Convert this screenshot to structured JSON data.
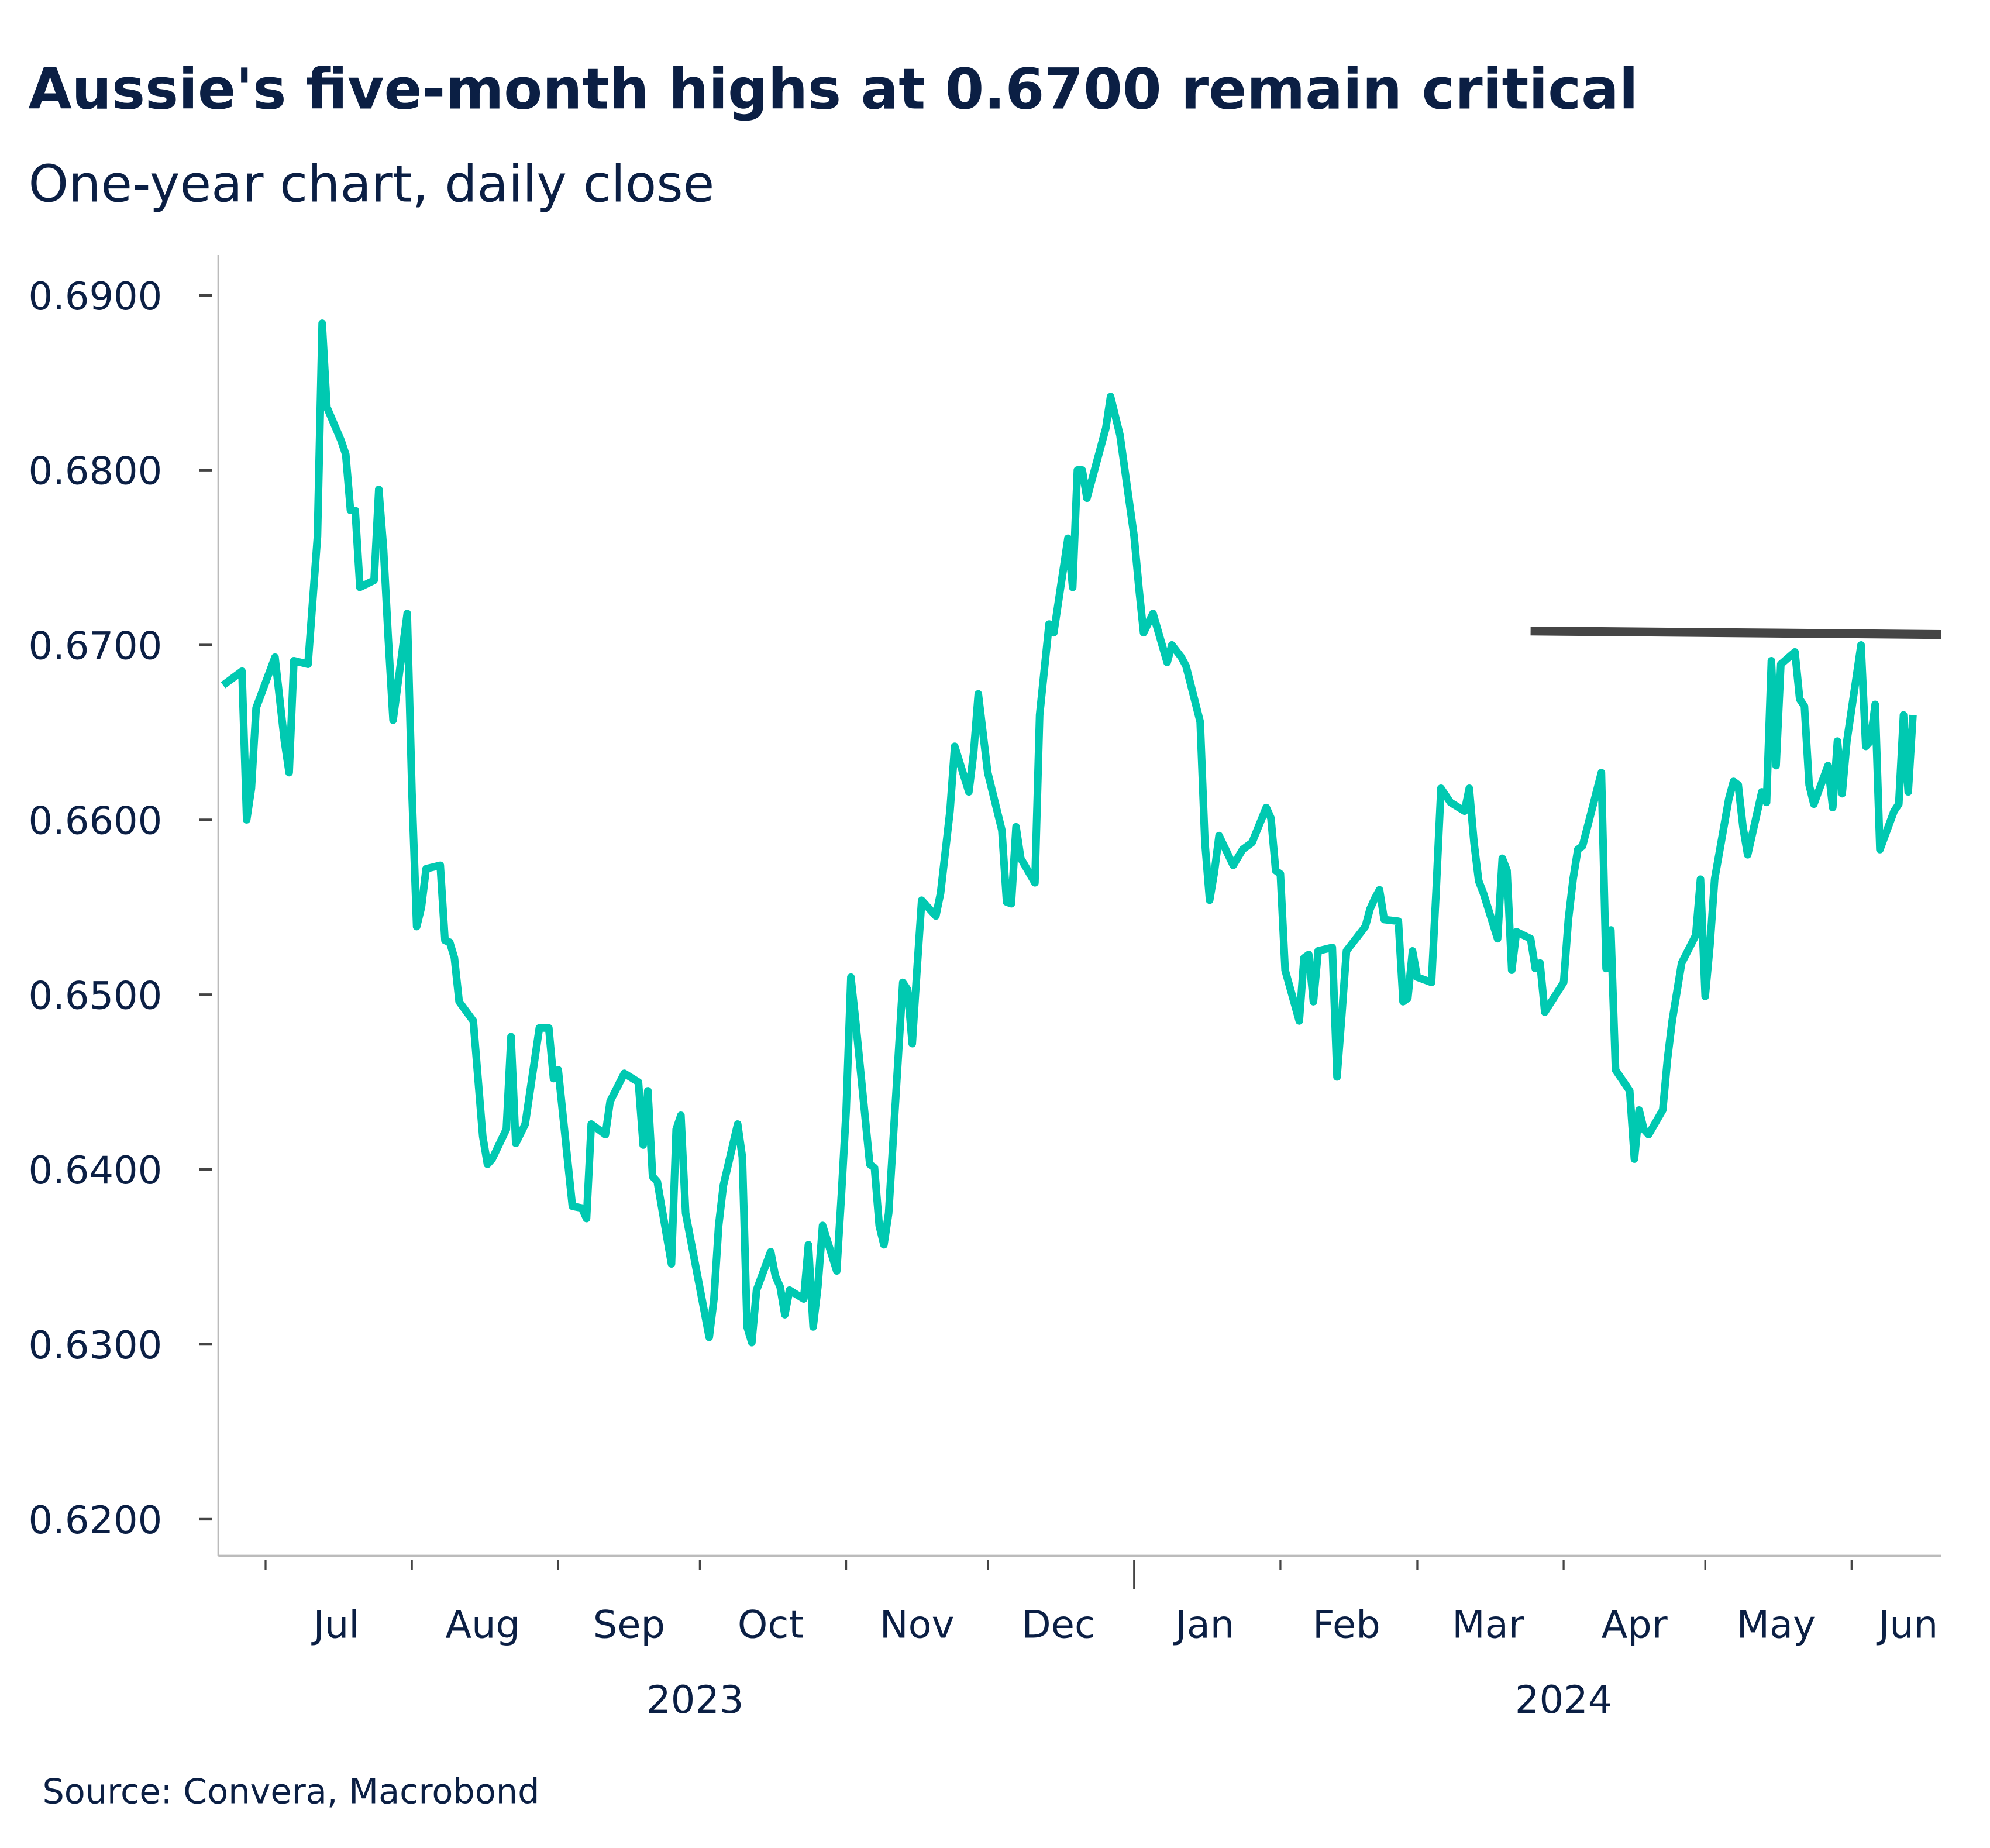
{
  "chart_data": {
    "type": "line",
    "title": "Aussie's five-month highs at 0.6700 remain critical",
    "subtitle": "One-year chart, daily close",
    "source": "Source: Convera, Macrobond",
    "xlabel": "",
    "ylabel": "",
    "xlim": [
      "2023-06-21",
      "2024-06-20"
    ],
    "ylim": [
      0.6179,
      0.6923
    ],
    "y_ticks": [
      "0.6200",
      "0.6300",
      "0.6400",
      "0.6500",
      "0.6600",
      "0.6700",
      "0.6800",
      "0.6900"
    ],
    "x_month_ticks": [
      "2023-07-01",
      "2023-08-01",
      "2023-09-01",
      "2023-10-01",
      "2023-11-01",
      "2023-12-01",
      "2024-01-01",
      "2024-02-01",
      "2024-03-01",
      "2024-04-01",
      "2024-05-01",
      "2024-06-01"
    ],
    "x_month_labels": [
      {
        "label": "Jul",
        "date": "2023-07-16"
      },
      {
        "label": "Aug",
        "date": "2023-08-16"
      },
      {
        "label": "Sep",
        "date": "2023-09-16"
      },
      {
        "label": "Oct",
        "date": "2023-10-16"
      },
      {
        "label": "Nov",
        "date": "2023-11-16"
      },
      {
        "label": "Dec",
        "date": "2023-12-16"
      },
      {
        "label": "Jan",
        "date": "2024-01-16"
      },
      {
        "label": "Feb",
        "date": "2024-02-15"
      },
      {
        "label": "Mar",
        "date": "2024-03-16"
      },
      {
        "label": "Apr",
        "date": "2024-04-16"
      },
      {
        "label": "May",
        "date": "2024-05-16"
      },
      {
        "label": "Jun",
        "date": "2024-06-13"
      }
    ],
    "year_boundary": "2024-01-01",
    "x_year_labels": [
      {
        "label": "2023",
        "date": "2023-09-30"
      },
      {
        "label": "2024",
        "date": "2024-04-01"
      }
    ],
    "grid": false,
    "series": [
      {
        "color": "#00c9b1",
        "points": [
          [
            "2023-06-22",
            0.6677
          ],
          [
            "2023-06-26",
            0.6685
          ],
          [
            "2023-06-27",
            0.66
          ],
          [
            "2023-06-28",
            0.6618
          ],
          [
            "2023-06-29",
            0.6664
          ],
          [
            "2023-07-03",
            0.6693
          ],
          [
            "2023-07-05",
            0.6645
          ],
          [
            "2023-07-06",
            0.6627
          ],
          [
            "2023-07-07",
            0.6691
          ],
          [
            "2023-07-10",
            0.6689
          ],
          [
            "2023-07-12",
            0.6762
          ],
          [
            "2023-07-13",
            0.6884
          ],
          [
            "2023-07-14",
            0.6836
          ],
          [
            "2023-07-17",
            0.6817
          ],
          [
            "2023-07-18",
            0.6809
          ],
          [
            "2023-07-19",
            0.6777
          ],
          [
            "2023-07-20",
            0.6777
          ],
          [
            "2023-07-21",
            0.6733
          ],
          [
            "2023-07-24",
            0.6737
          ],
          [
            "2023-07-25",
            0.6789
          ],
          [
            "2023-07-26",
            0.6755
          ],
          [
            "2023-07-27",
            0.6704
          ],
          [
            "2023-07-28",
            0.6657
          ],
          [
            "2023-07-31",
            0.6718
          ],
          [
            "2023-08-01",
            0.6616
          ],
          [
            "2023-08-02",
            0.6539
          ],
          [
            "2023-08-03",
            0.655
          ],
          [
            "2023-08-04",
            0.6572
          ],
          [
            "2023-08-07",
            0.6574
          ],
          [
            "2023-08-08",
            0.6531
          ],
          [
            "2023-08-09",
            0.653
          ],
          [
            "2023-08-10",
            0.6521
          ],
          [
            "2023-08-11",
            0.6496
          ],
          [
            "2023-08-14",
            0.6485
          ],
          [
            "2023-08-15",
            0.6452
          ],
          [
            "2023-08-16",
            0.6419
          ],
          [
            "2023-08-17",
            0.6403
          ],
          [
            "2023-08-18",
            0.6406
          ],
          [
            "2023-08-21",
            0.6423
          ],
          [
            "2023-08-22",
            0.6476
          ],
          [
            "2023-08-23",
            0.6415
          ],
          [
            "2023-08-25",
            0.6426
          ],
          [
            "2023-08-28",
            0.6481
          ],
          [
            "2023-08-30",
            0.6481
          ],
          [
            "2023-08-31",
            0.6452
          ],
          [
            "2023-09-01",
            0.6457
          ],
          [
            "2023-09-04",
            0.6379
          ],
          [
            "2023-09-06",
            0.6378
          ],
          [
            "2023-09-07",
            0.6372
          ],
          [
            "2023-09-08",
            0.6426
          ],
          [
            "2023-09-11",
            0.642
          ],
          [
            "2023-09-12",
            0.6439
          ],
          [
            "2023-09-15",
            0.6455
          ],
          [
            "2023-09-18",
            0.645
          ],
          [
            "2023-09-19",
            0.6414
          ],
          [
            "2023-09-20",
            0.6445
          ],
          [
            "2023-09-21",
            0.6396
          ],
          [
            "2023-09-22",
            0.6393
          ],
          [
            "2023-09-25",
            0.6346
          ],
          [
            "2023-09-26",
            0.6423
          ],
          [
            "2023-09-27",
            0.6431
          ],
          [
            "2023-09-28",
            0.6375
          ],
          [
            "2023-10-03",
            0.6304
          ],
          [
            "2023-10-04",
            0.6326
          ],
          [
            "2023-10-05",
            0.6368
          ],
          [
            "2023-10-06",
            0.6391
          ],
          [
            "2023-10-09",
            0.6426
          ],
          [
            "2023-10-10",
            0.6407
          ],
          [
            "2023-10-11",
            0.631
          ],
          [
            "2023-10-12",
            0.6301
          ],
          [
            "2023-10-13",
            0.6331
          ],
          [
            "2023-10-16",
            0.6353
          ],
          [
            "2023-10-17",
            0.6339
          ],
          [
            "2023-10-18",
            0.6333
          ],
          [
            "2023-10-19",
            0.6317
          ],
          [
            "2023-10-20",
            0.6331
          ],
          [
            "2023-10-23",
            0.6326
          ],
          [
            "2023-10-24",
            0.6357
          ],
          [
            "2023-10-25",
            0.631
          ],
          [
            "2023-10-26",
            0.6333
          ],
          [
            "2023-10-27",
            0.6368
          ],
          [
            "2023-10-30",
            0.6342
          ],
          [
            "2023-10-31",
            0.6386
          ],
          [
            "2023-11-01",
            0.6434
          ],
          [
            "2023-11-02",
            0.651
          ],
          [
            "2023-11-03",
            0.6485
          ],
          [
            "2023-11-06",
            0.6403
          ],
          [
            "2023-11-07",
            0.6401
          ],
          [
            "2023-11-08",
            0.6368
          ],
          [
            "2023-11-09",
            0.6357
          ],
          [
            "2023-11-10",
            0.6375
          ],
          [
            "2023-11-13",
            0.6507
          ],
          [
            "2023-11-14",
            0.6503
          ],
          [
            "2023-11-15",
            0.6472
          ],
          [
            "2023-11-16",
            0.6514
          ],
          [
            "2023-11-17",
            0.6554
          ],
          [
            "2023-11-20",
            0.6545
          ],
          [
            "2023-11-21",
            0.6558
          ],
          [
            "2023-11-23",
            0.6605
          ],
          [
            "2023-11-24",
            0.6642
          ],
          [
            "2023-11-27",
            0.6616
          ],
          [
            "2023-11-28",
            0.6638
          ],
          [
            "2023-11-29",
            0.6672
          ],
          [
            "2023-12-01",
            0.6627
          ],
          [
            "2023-12-04",
            0.6594
          ],
          [
            "2023-12-05",
            0.6553
          ],
          [
            "2023-12-06",
            0.6552
          ],
          [
            "2023-12-07",
            0.6596
          ],
          [
            "2023-12-08",
            0.6578
          ],
          [
            "2023-12-11",
            0.6564
          ],
          [
            "2023-12-12",
            0.666
          ],
          [
            "2023-12-14",
            0.6712
          ],
          [
            "2023-12-15",
            0.6707
          ],
          [
            "2023-12-18",
            0.6761
          ],
          [
            "2023-12-19",
            0.6733
          ],
          [
            "2023-12-20",
            0.68
          ],
          [
            "2023-12-21",
            0.68
          ],
          [
            "2023-12-22",
            0.6784
          ],
          [
            "2023-12-26",
            0.6824
          ],
          [
            "2023-12-27",
            0.6842
          ],
          [
            "2023-12-28",
            0.6831
          ],
          [
            "2023-12-29",
            0.682
          ],
          [
            "2024-01-01",
            0.6762
          ],
          [
            "2024-01-02",
            0.6733
          ],
          [
            "2024-01-03",
            0.6707
          ],
          [
            "2024-01-05",
            0.6718
          ],
          [
            "2024-01-08",
            0.669
          ],
          [
            "2024-01-09",
            0.67
          ],
          [
            "2024-01-11",
            0.6693
          ],
          [
            "2024-01-12",
            0.6688
          ],
          [
            "2024-01-15",
            0.6656
          ],
          [
            "2024-01-16",
            0.6587
          ],
          [
            "2024-01-17",
            0.6554
          ],
          [
            "2024-01-18",
            0.657
          ],
          [
            "2024-01-19",
            0.6591
          ],
          [
            "2024-01-22",
            0.6574
          ],
          [
            "2024-01-24",
            0.6583
          ],
          [
            "2024-01-26",
            0.6587
          ],
          [
            "2024-01-29",
            0.6607
          ],
          [
            "2024-01-30",
            0.6601
          ],
          [
            "2024-01-31",
            0.6571
          ],
          [
            "2024-02-01",
            0.6569
          ],
          [
            "2024-02-02",
            0.6514
          ],
          [
            "2024-02-05",
            0.6485
          ],
          [
            "2024-02-06",
            0.6521
          ],
          [
            "2024-02-07",
            0.6523
          ],
          [
            "2024-02-08",
            0.6496
          ],
          [
            "2024-02-09",
            0.6525
          ],
          [
            "2024-02-12",
            0.6527
          ],
          [
            "2024-02-13",
            0.6453
          ],
          [
            "2024-02-14",
            0.6488
          ],
          [
            "2024-02-15",
            0.6525
          ],
          [
            "2024-02-19",
            0.6539
          ],
          [
            "2024-02-20",
            0.6549
          ],
          [
            "2024-02-21",
            0.6555
          ],
          [
            "2024-02-22",
            0.656
          ],
          [
            "2024-02-23",
            0.6543
          ],
          [
            "2024-02-26",
            0.6542
          ],
          [
            "2024-02-27",
            0.6496
          ],
          [
            "2024-02-28",
            0.6498
          ],
          [
            "2024-02-29",
            0.6525
          ],
          [
            "2024-03-01",
            0.651
          ],
          [
            "2024-03-04",
            0.6507
          ],
          [
            "2024-03-05",
            0.6561
          ],
          [
            "2024-03-06",
            0.6618
          ],
          [
            "2024-03-08",
            0.661
          ],
          [
            "2024-03-11",
            0.6605
          ],
          [
            "2024-03-12",
            0.6618
          ],
          [
            "2024-03-13",
            0.6587
          ],
          [
            "2024-03-14",
            0.6565
          ],
          [
            "2024-03-15",
            0.6558
          ],
          [
            "2024-03-18",
            0.6532
          ],
          [
            "2024-03-19",
            0.6578
          ],
          [
            "2024-03-20",
            0.6571
          ],
          [
            "2024-03-21",
            0.6514
          ],
          [
            "2024-03-22",
            0.6536
          ],
          [
            "2024-03-25",
            0.6532
          ],
          [
            "2024-03-26",
            0.6515
          ],
          [
            "2024-03-27",
            0.6518
          ],
          [
            "2024-03-28",
            0.649
          ],
          [
            "2024-04-01",
            0.6507
          ],
          [
            "2024-04-02",
            0.6543
          ],
          [
            "2024-04-03",
            0.6566
          ],
          [
            "2024-04-04",
            0.6583
          ],
          [
            "2024-04-05",
            0.6585
          ],
          [
            "2024-04-09",
            0.6627
          ],
          [
            "2024-04-10",
            0.6515
          ],
          [
            "2024-04-11",
            0.6537
          ],
          [
            "2024-04-12",
            0.6457
          ],
          [
            "2024-04-15",
            0.6445
          ],
          [
            "2024-04-16",
            0.6406
          ],
          [
            "2024-04-17",
            0.6434
          ],
          [
            "2024-04-18",
            0.6423
          ],
          [
            "2024-04-19",
            0.642
          ],
          [
            "2024-04-22",
            0.6434
          ],
          [
            "2024-04-23",
            0.6463
          ],
          [
            "2024-04-24",
            0.6485
          ],
          [
            "2024-04-26",
            0.6518
          ],
          [
            "2024-04-29",
            0.6534
          ],
          [
            "2024-04-30",
            0.6566
          ],
          [
            "2024-05-01",
            0.6499
          ],
          [
            "2024-05-02",
            0.6528
          ],
          [
            "2024-05-03",
            0.6566
          ],
          [
            "2024-05-06",
            0.6612
          ],
          [
            "2024-05-07",
            0.6622
          ],
          [
            "2024-05-08",
            0.662
          ],
          [
            "2024-05-09",
            0.6596
          ],
          [
            "2024-05-10",
            0.658
          ],
          [
            "2024-05-13",
            0.6616
          ],
          [
            "2024-05-14",
            0.661
          ],
          [
            "2024-05-15",
            0.6691
          ],
          [
            "2024-05-16",
            0.6631
          ],
          [
            "2024-05-17",
            0.6689
          ],
          [
            "2024-05-20",
            0.6696
          ],
          [
            "2024-05-21",
            0.6669
          ],
          [
            "2024-05-22",
            0.6665
          ],
          [
            "2024-05-23",
            0.662
          ],
          [
            "2024-05-24",
            0.6609
          ],
          [
            "2024-05-27",
            0.6631
          ],
          [
            "2024-05-28",
            0.6607
          ],
          [
            "2024-05-29",
            0.6645
          ],
          [
            "2024-05-30",
            0.6615
          ],
          [
            "2024-05-31",
            0.6645
          ],
          [
            "2024-06-03",
            0.67
          ],
          [
            "2024-06-04",
            0.6642
          ],
          [
            "2024-06-05",
            0.6645
          ],
          [
            "2024-06-06",
            0.6666
          ],
          [
            "2024-06-07",
            0.6583
          ],
          [
            "2024-06-10",
            0.6605
          ],
          [
            "2024-06-11",
            0.6609
          ],
          [
            "2024-06-12",
            0.666
          ],
          [
            "2024-06-13",
            0.6616
          ],
          [
            "2024-06-14",
            0.666
          ]
        ]
      }
    ],
    "annotations": [
      {
        "type": "resistance-line",
        "color": "#454545",
        "from": [
          "2024-03-25",
          0.6708
        ],
        "to": [
          "2024-06-20",
          0.6706
        ]
      }
    ]
  }
}
